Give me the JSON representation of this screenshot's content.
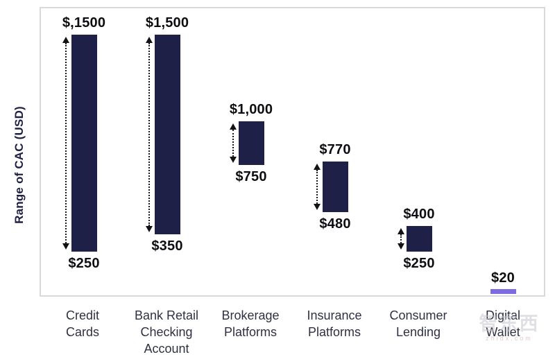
{
  "watermark": {
    "logo": "智东西",
    "url": "zhidx.com"
  },
  "chart_data": {
    "type": "bar",
    "subtype": "floating-range-bar",
    "title": "",
    "xlabel": "",
    "ylabel": "Range of CAC (USD)",
    "ylim": [
      0,
      1650
    ],
    "grid": false,
    "legend": false,
    "bar_color": "#1f2047",
    "marker_color": "#7d6be0",
    "categories": [
      "Credit Cards",
      "Bank Retail Checking Account",
      "Brokerage Platforms",
      "Insurance Platforms",
      "Consumer Lending",
      "Digital Wallet"
    ],
    "x_tick_labels": [
      "Credit\nCards",
      "Bank Retail\nChecking\nAccount",
      "Brokerage\nPlatforms",
      "Insurance\nPlatforms",
      "Consumer\nLending",
      "Digital Wallet"
    ],
    "series": [
      {
        "name": "Credit Cards",
        "style": "range",
        "low": 250,
        "high": 1500,
        "low_label": "$250",
        "high_label": "$,1500"
      },
      {
        "name": "Bank Retail Checking Account",
        "style": "range",
        "low": 350,
        "high": 1500,
        "low_label": "$350",
        "high_label": "$1,500"
      },
      {
        "name": "Brokerage Platforms",
        "style": "range",
        "low": 750,
        "high": 1000,
        "low_label": "$750",
        "high_label": "$1,000"
      },
      {
        "name": "Insurance Platforms",
        "style": "range",
        "low": 480,
        "high": 770,
        "low_label": "$480",
        "high_label": "$770"
      },
      {
        "name": "Consumer Lending",
        "style": "range",
        "low": 250,
        "high": 400,
        "low_label": "$250",
        "high_label": "$400"
      },
      {
        "name": "Digital Wallet",
        "style": "marker",
        "value": 20,
        "value_label": "$20"
      }
    ]
  }
}
